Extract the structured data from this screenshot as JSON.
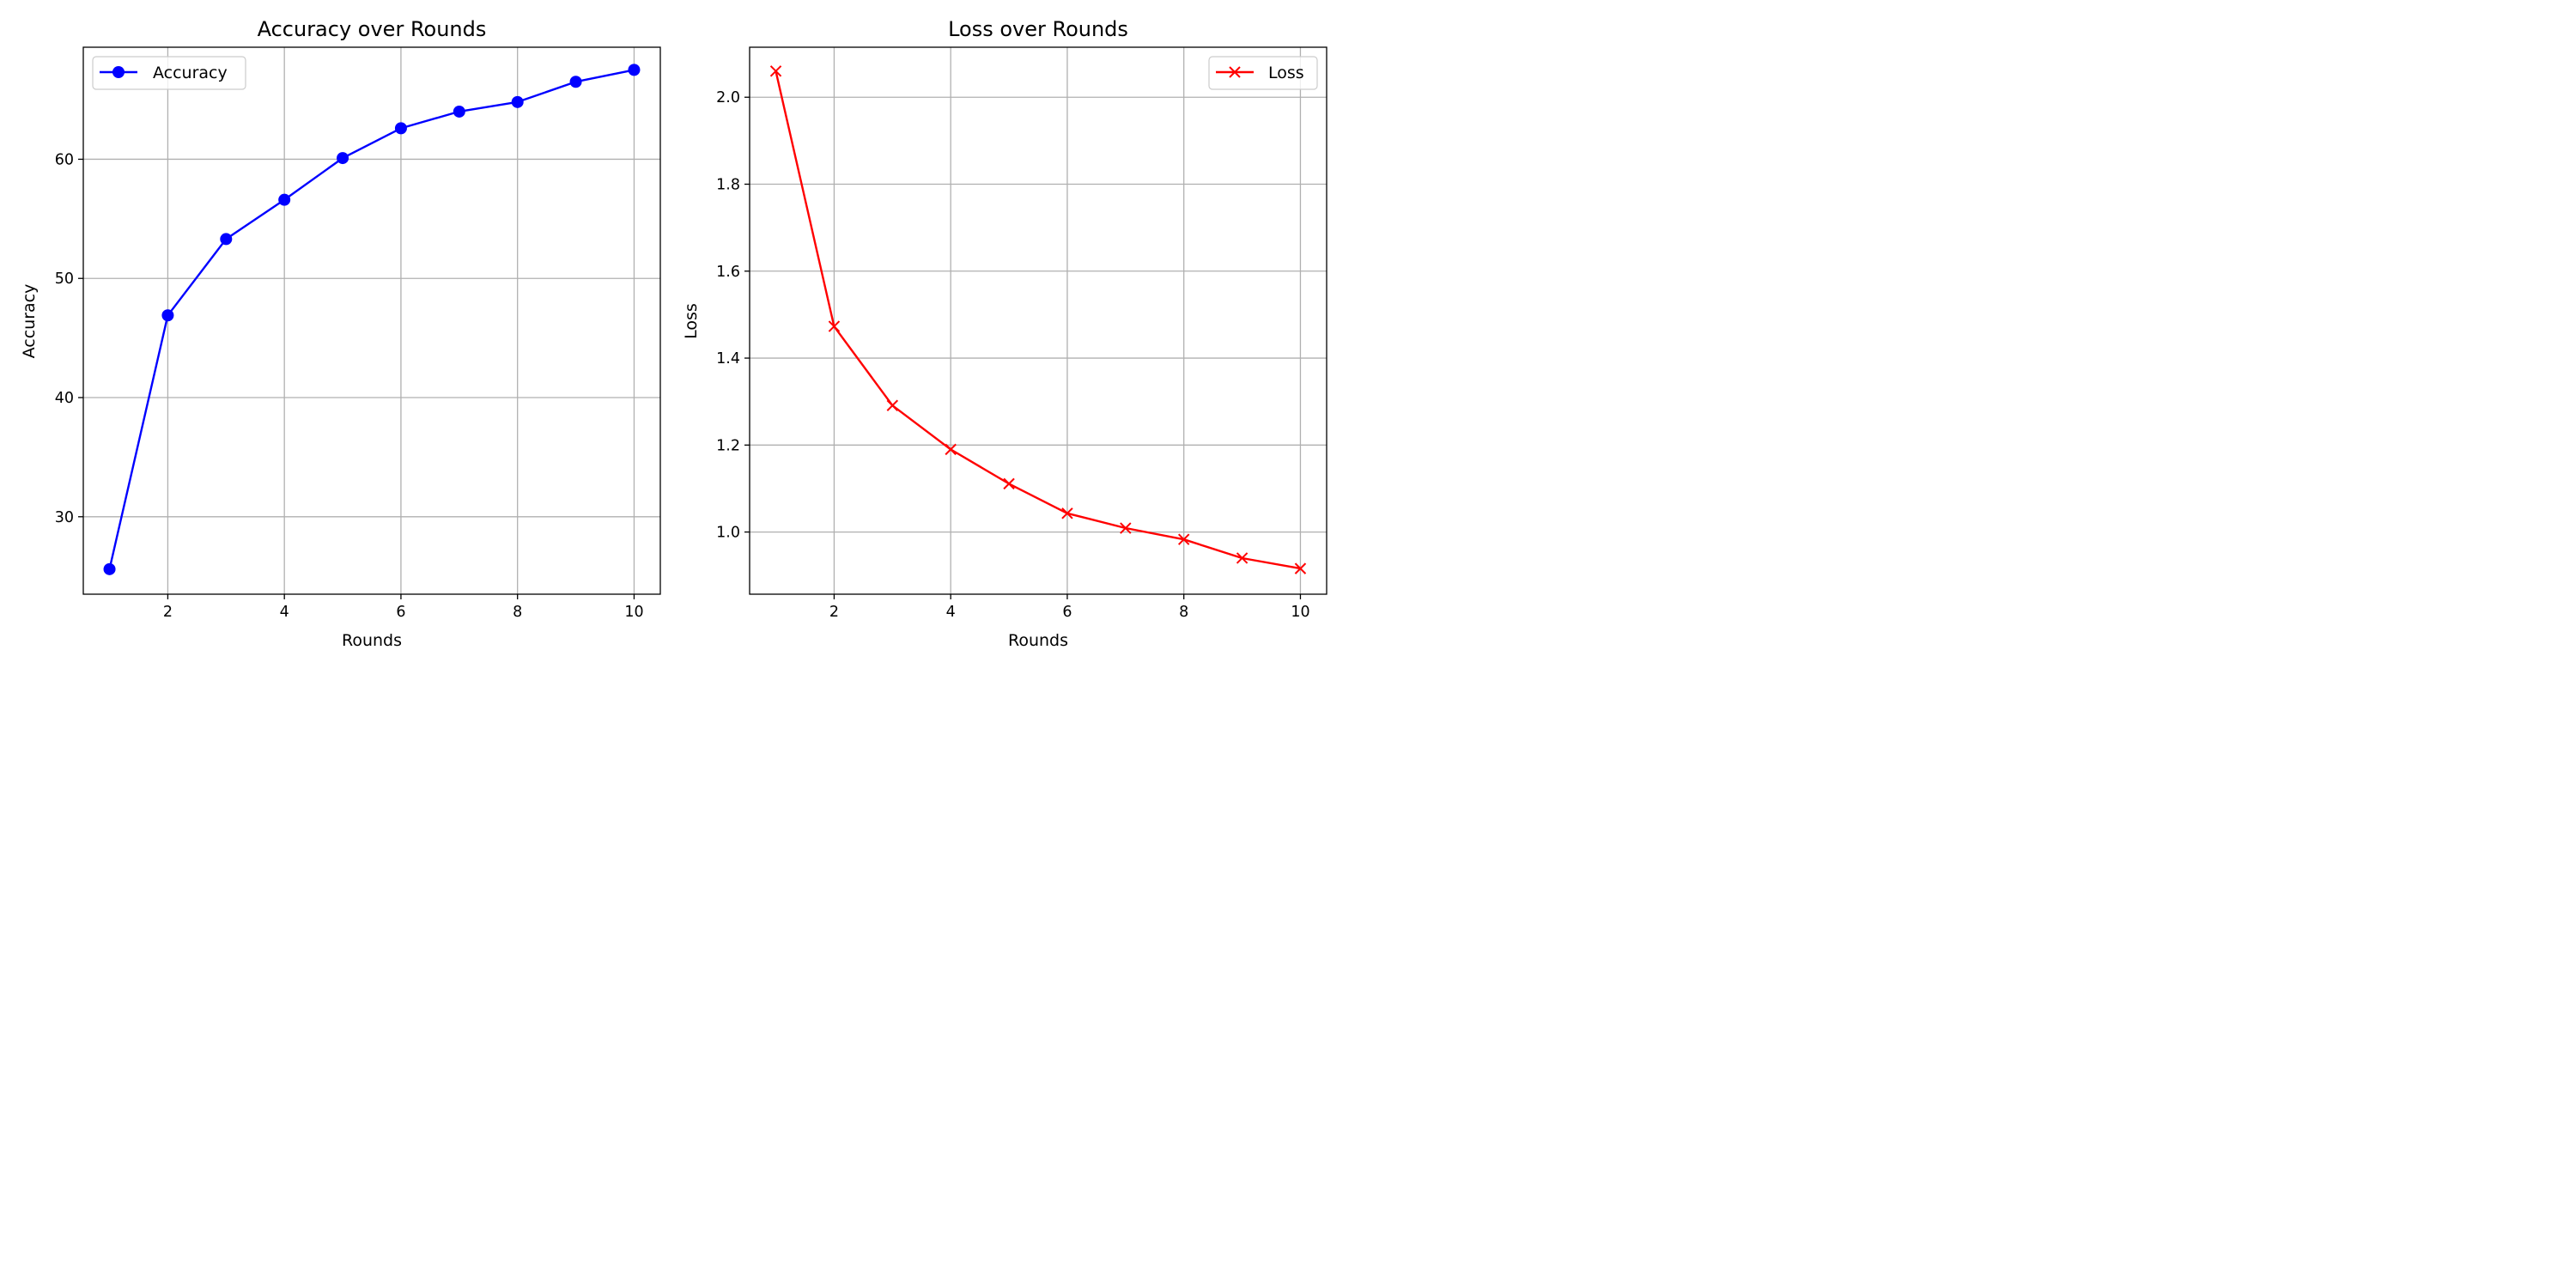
{
  "colors": {
    "accuracy": "#0000ff",
    "loss": "#ff0000",
    "grid": "#b0b0b0"
  },
  "chart_data": [
    {
      "type": "line",
      "title": "Accuracy over Rounds",
      "xlabel": "Rounds",
      "ylabel": "Accuracy",
      "grid": true,
      "legend_position": "top-left",
      "x": [
        1,
        2,
        3,
        4,
        5,
        6,
        7,
        8,
        9,
        10
      ],
      "xlim": [
        0.55,
        10.45
      ],
      "ylim": [
        23.5,
        69.4
      ],
      "xticks": [
        2,
        4,
        6,
        8,
        10
      ],
      "yticks": [
        30,
        40,
        50,
        60
      ],
      "series": [
        {
          "name": "Accuracy",
          "marker": "circle",
          "color": "#0000ff",
          "values": [
            25.6,
            46.9,
            53.3,
            56.6,
            60.1,
            62.6,
            64.0,
            64.8,
            66.5,
            67.5
          ]
        }
      ]
    },
    {
      "type": "line",
      "title": "Loss over Rounds",
      "xlabel": "Rounds",
      "ylabel": "Loss",
      "grid": true,
      "legend_position": "top-right",
      "x": [
        1,
        2,
        3,
        4,
        5,
        6,
        7,
        8,
        9,
        10
      ],
      "xlim": [
        0.55,
        10.45
      ],
      "ylim": [
        0.857,
        2.115
      ],
      "xticks": [
        2,
        4,
        6,
        8,
        10
      ],
      "yticks": [
        1.0,
        1.2,
        1.4,
        1.6,
        1.8,
        2.0
      ],
      "ytick_labels": [
        "1.0",
        "1.2",
        "1.4",
        "1.6",
        "1.8",
        "2.0"
      ],
      "series": [
        {
          "name": "Loss",
          "marker": "x",
          "color": "#ff0000",
          "values": [
            2.06,
            1.473,
            1.291,
            1.19,
            1.111,
            1.043,
            1.009,
            0.983,
            0.94,
            0.916
          ]
        }
      ]
    }
  ]
}
